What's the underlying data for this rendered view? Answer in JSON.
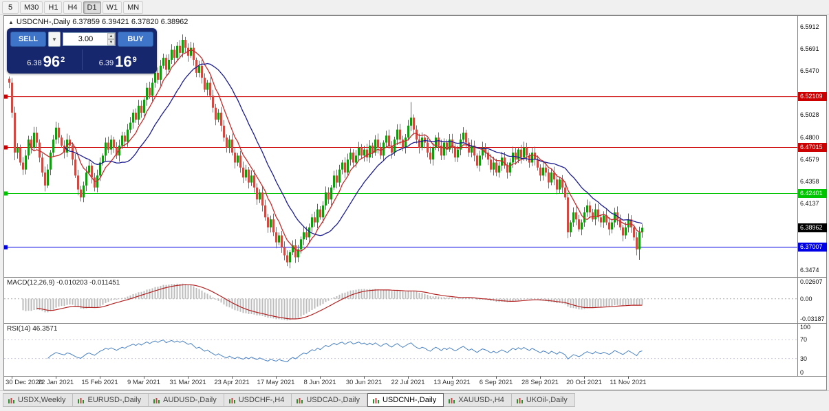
{
  "toolbar": {
    "timeframes": [
      "5",
      "M30",
      "H1",
      "H4",
      "D1",
      "W1",
      "MN"
    ],
    "active": "D1"
  },
  "chart": {
    "title_line": "USDCNH-,Daily 6.37859 6.39421 6.37820 6.38962",
    "symbol": "USDCNH-",
    "period": "Daily",
    "open": "6.37859",
    "high": "6.39421",
    "low": "6.37820",
    "close": "6.38962"
  },
  "trade_panel": {
    "sell_label": "SELL",
    "buy_label": "BUY",
    "volume": "3.00",
    "sell_price_small": "6.38",
    "sell_price_big": "96",
    "sell_price_sup": "2",
    "buy_price_small": "6.39",
    "buy_price_big": "16",
    "buy_price_sup": "9"
  },
  "price_axis": {
    "min": 6.3403,
    "max": 6.6021,
    "ticks": [
      {
        "label": "6.5912",
        "price": 6.5912
      },
      {
        "label": "6.5691",
        "price": 6.5691
      },
      {
        "label": "6.5470",
        "price": 6.547
      },
      {
        "label": "6.5028",
        "price": 6.5028
      },
      {
        "label": "6.4800",
        "price": 6.48
      },
      {
        "label": "6.4579",
        "price": 6.4579
      },
      {
        "label": "6.4358",
        "price": 6.4358
      },
      {
        "label": "6.4137",
        "price": 6.4137
      },
      {
        "label": "6.3474",
        "price": 6.3474
      }
    ],
    "levels": [
      {
        "label": "6.52109",
        "price": 6.52109,
        "color": "#cc0000",
        "line": true
      },
      {
        "label": "6.47015",
        "price": 6.47015,
        "color": "#cc0000",
        "line": true
      },
      {
        "label": "6.42401",
        "price": 6.42401,
        "color": "#00c400",
        "line": true
      },
      {
        "label": "6.38962",
        "price": 6.38962,
        "color": "#000000",
        "line": false
      },
      {
        "label": "6.37007",
        "price": 6.37007,
        "color": "#0000e6",
        "line": true
      }
    ]
  },
  "chart_data": {
    "type": "candlestick",
    "symbol": "USDCNH",
    "timeframe": "Daily",
    "spacing": 4,
    "current_price": 6.38962,
    "x_labels": [
      "30 Dec 2020",
      "22 Jan 2021",
      "15 Feb 2021",
      "9 Mar 2021",
      "31 Mar 2021",
      "23 Apr 2021",
      "17 May 2021",
      "8 Jun 2021",
      "30 Jun 2021",
      "22 Jul 2021",
      "13 Aug 2021",
      "6 Sep 2021",
      "28 Sep 2021",
      "20 Oct 2021",
      "11 Nov 2021"
    ],
    "x_label_indices": [
      1,
      17,
      33,
      49,
      65,
      81,
      97,
      113,
      129,
      145,
      161,
      177,
      193,
      209,
      225
    ],
    "horizontal_lines": [
      6.52109,
      6.47015,
      6.42401,
      6.37007
    ],
    "closes": [
      6.535,
      6.505,
      6.465,
      6.47,
      6.455,
      6.448,
      6.462,
      6.478,
      6.47,
      6.485,
      6.475,
      6.46,
      6.445,
      6.432,
      6.448,
      6.465,
      6.478,
      6.49,
      6.48,
      6.472,
      6.465,
      6.478,
      6.472,
      6.458,
      6.442,
      6.428,
      6.42,
      6.432,
      6.445,
      6.452,
      6.44,
      6.43,
      6.442,
      6.455,
      6.462,
      6.475,
      6.468,
      6.478,
      6.47,
      6.462,
      6.472,
      6.482,
      6.476,
      6.488,
      6.495,
      6.505,
      6.498,
      6.512,
      6.505,
      6.518,
      6.53,
      6.522,
      6.535,
      6.545,
      6.538,
      6.552,
      6.56,
      6.548,
      6.558,
      6.568,
      6.56,
      6.572,
      6.565,
      6.578,
      6.57,
      6.562,
      6.57,
      6.558,
      6.545,
      6.552,
      6.54,
      6.528,
      6.535,
      6.522,
      6.51,
      6.498,
      6.505,
      6.492,
      6.48,
      6.47,
      6.478,
      6.465,
      6.455,
      6.462,
      6.45,
      6.44,
      6.448,
      6.435,
      6.442,
      6.43,
      6.418,
      6.425,
      6.412,
      6.4,
      6.39,
      6.398,
      6.385,
      6.375,
      6.382,
      6.37,
      6.362,
      6.355,
      6.365,
      6.372,
      6.36,
      6.368,
      6.378,
      6.385,
      6.38,
      6.39,
      6.4,
      6.395,
      6.408,
      6.4,
      6.412,
      6.425,
      6.418,
      6.43,
      6.442,
      6.435,
      6.448,
      6.455,
      6.445,
      6.458,
      6.465,
      6.455,
      6.462,
      6.47,
      6.462,
      6.468,
      6.46,
      6.472,
      6.465,
      6.478,
      6.47,
      6.462,
      6.475,
      6.482,
      6.472,
      6.465,
      6.478,
      6.488,
      6.478,
      6.47,
      6.48,
      6.492,
      6.5,
      6.488,
      6.478,
      6.47,
      6.48,
      6.475,
      6.465,
      6.458,
      6.47,
      6.48,
      6.472,
      6.462,
      6.475,
      6.468,
      6.478,
      6.47,
      6.46,
      6.468,
      6.478,
      6.485,
      6.475,
      6.465,
      6.472,
      6.462,
      6.452,
      6.462,
      6.47,
      6.465,
      6.458,
      6.448,
      6.455,
      6.445,
      6.452,
      6.46,
      6.452,
      6.445,
      6.455,
      6.465,
      6.458,
      6.468,
      6.46,
      6.47,
      6.462,
      6.455,
      6.465,
      6.458,
      6.45,
      6.442,
      6.45,
      6.445,
      6.435,
      6.445,
      6.438,
      6.428,
      6.438,
      6.43,
      6.42,
      6.385,
      6.395,
      6.405,
      6.398,
      6.388,
      6.395,
      6.405,
      6.412,
      6.405,
      6.398,
      6.408,
      6.4,
      6.395,
      6.402,
      6.395,
      6.388,
      6.395,
      6.405,
      6.398,
      6.39,
      6.382,
      6.39,
      6.398,
      6.39,
      6.38,
      6.368,
      6.385,
      6.3896
    ]
  },
  "macd": {
    "label": "MACD(12,26,9) -0.010203 -0.011451",
    "params": "12,26,9",
    "values": "-0.010203 -0.011451",
    "range_max": 0.033,
    "range_min": -0.038,
    "ticks": [
      {
        "label": "0.02607",
        "value": 0.02607
      },
      {
        "label": "0.00",
        "value": 0
      },
      {
        "label": "-0.03187",
        "value": -0.03187
      }
    ]
  },
  "rsi": {
    "label": "RSI(14) 46.3571",
    "value": 46.3571,
    "ticks": [
      {
        "label": "100",
        "value": 100
      },
      {
        "label": "70",
        "value": 70
      },
      {
        "label": "30",
        "value": 30
      },
      {
        "label": "0",
        "value": 0
      }
    ],
    "guide_levels": [
      70,
      30
    ]
  },
  "tabs": [
    {
      "label": "USDX,Weekly",
      "active": false
    },
    {
      "label": "EURUSD-,Daily",
      "active": false
    },
    {
      "label": "AUDUSD-,Daily",
      "active": false
    },
    {
      "label": "USDCHF-,H4",
      "active": false
    },
    {
      "label": "USDCAD-,Daily",
      "active": false
    },
    {
      "label": "USDCNH-,Daily",
      "active": true
    },
    {
      "label": "XAUUSD-,H4",
      "active": false
    },
    {
      "label": "UKOil-,Daily",
      "active": false
    }
  ],
  "colors": {
    "up": "#119b11",
    "down": "#cf4a42",
    "ma_fast": "#c42a2a",
    "ma_slow": "#1b1b8f",
    "macd_hist": "#bcbcbc",
    "macd_signal": "#b22222",
    "rsi_line": "#4a82c3"
  }
}
